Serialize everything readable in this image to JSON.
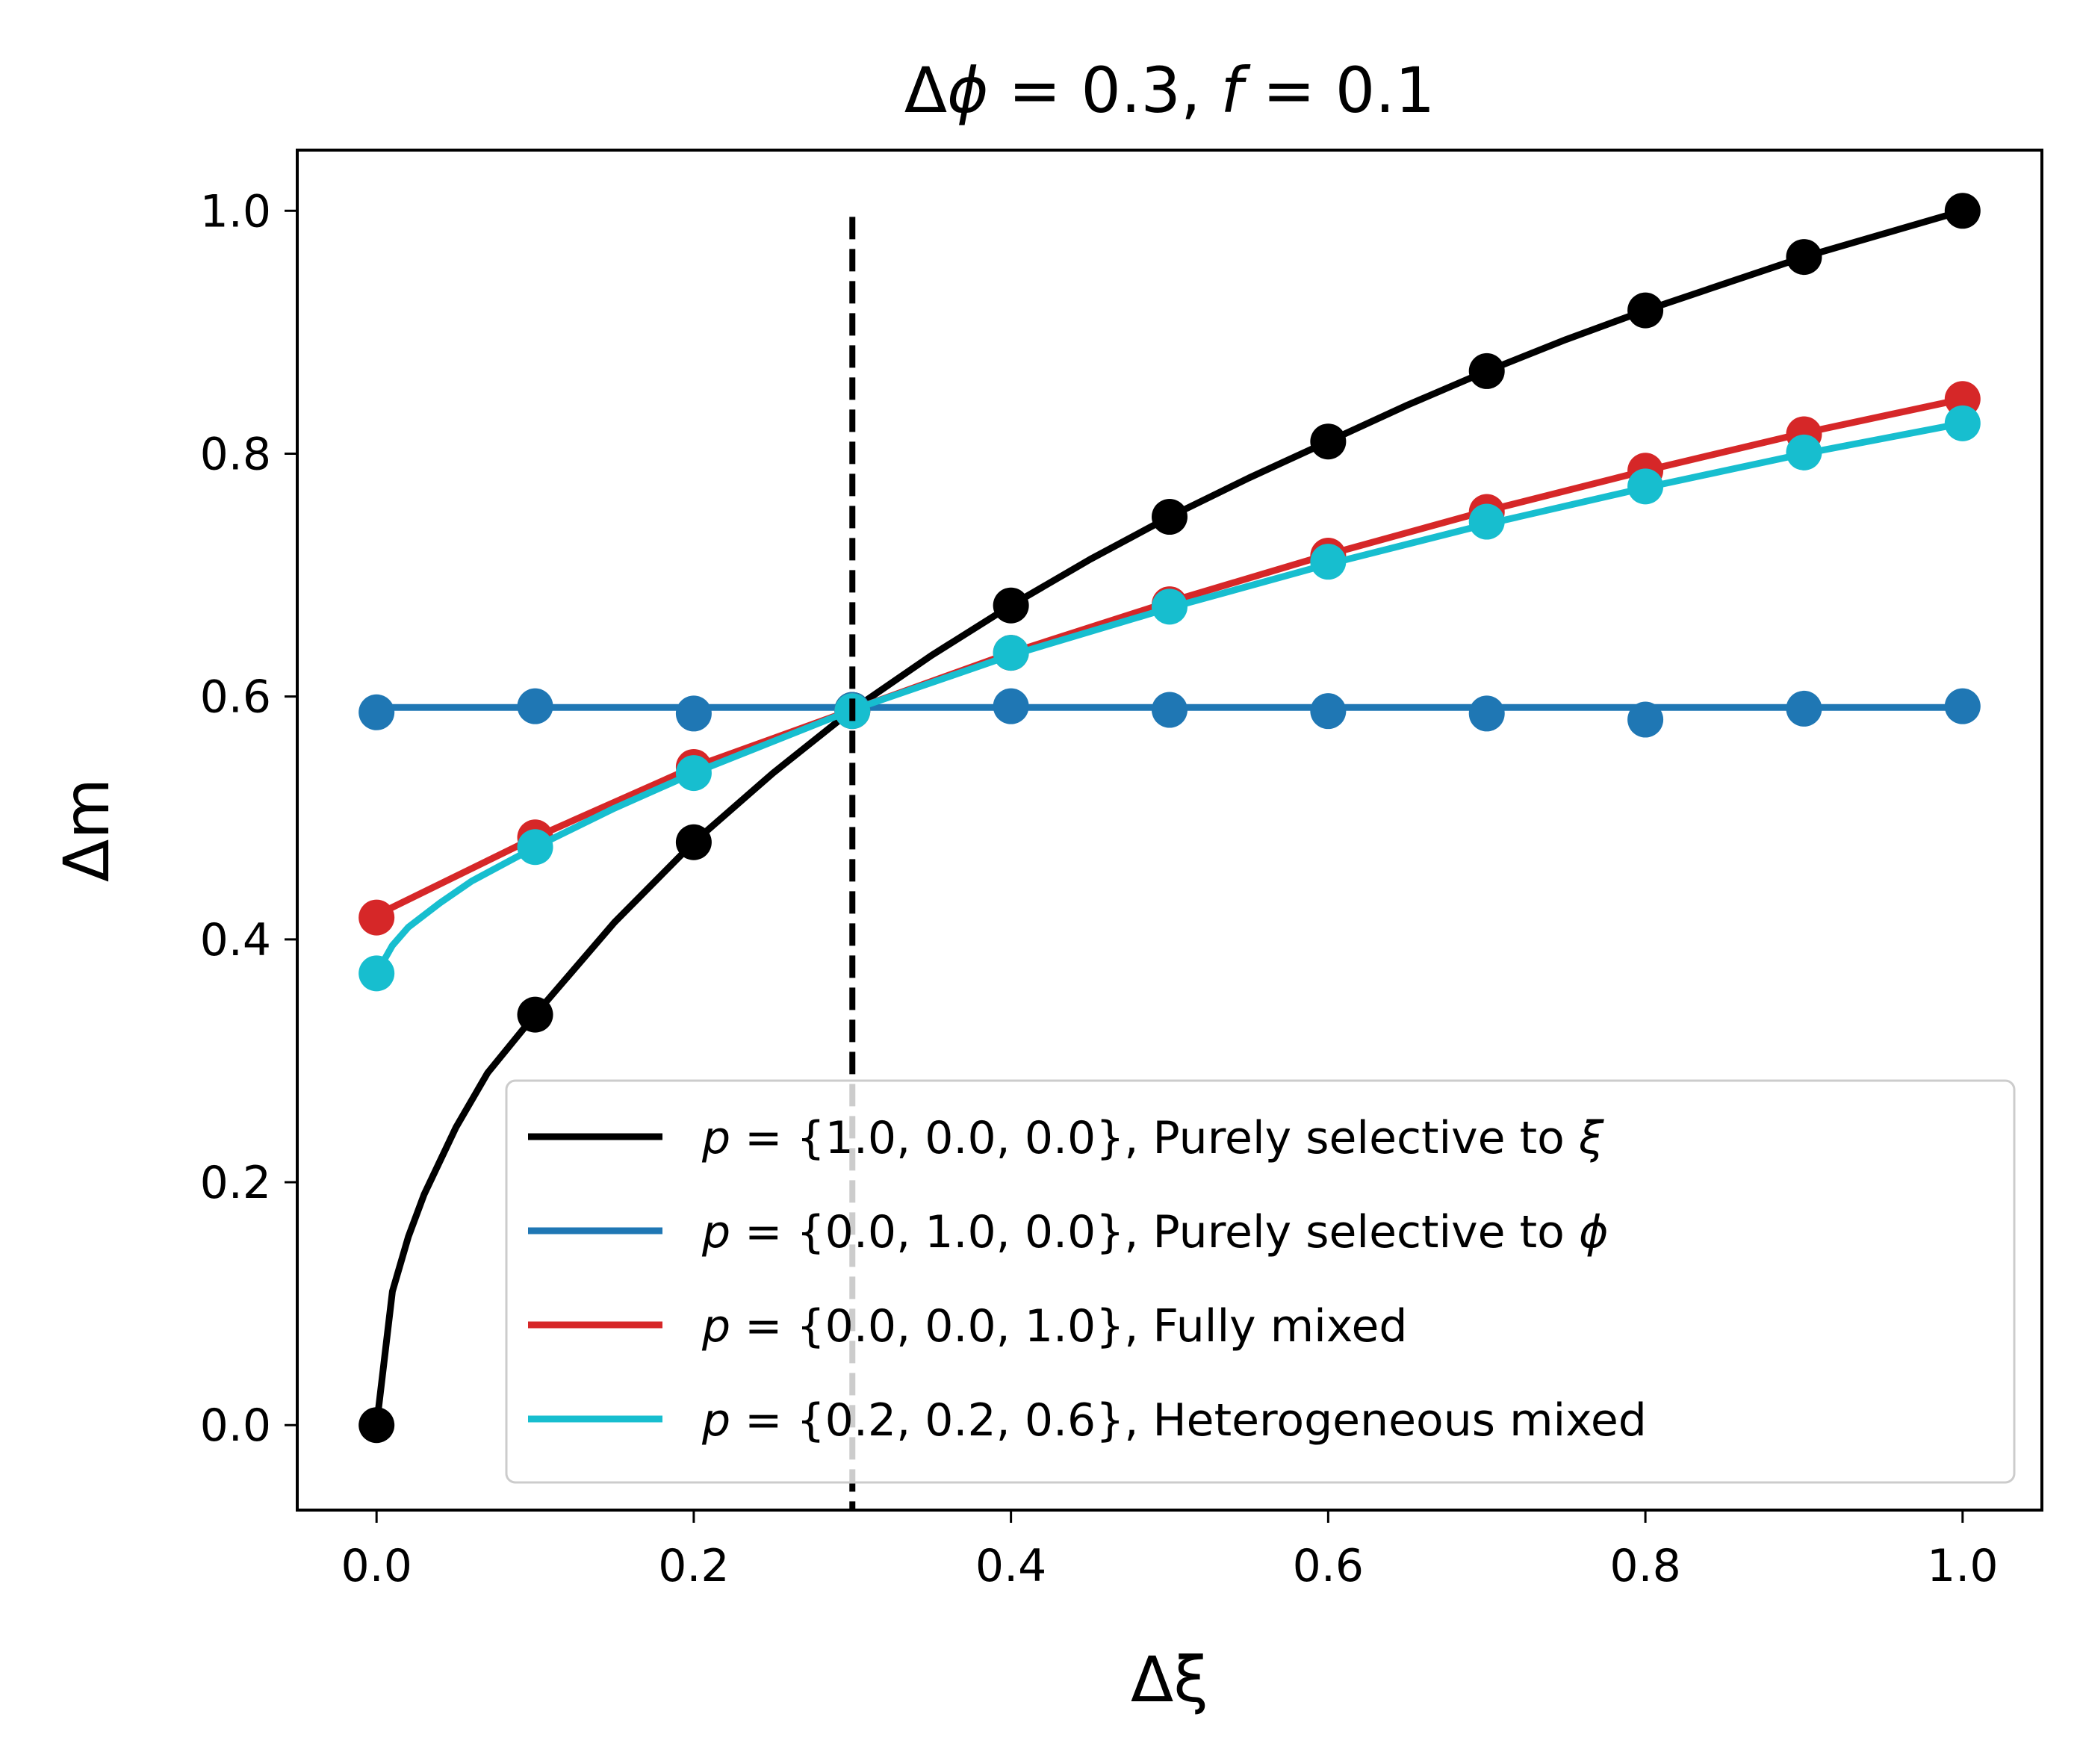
{
  "chart_data": {
    "type": "line",
    "title": "Δϕ = 0.3, f = 0.1",
    "xlabel": "Δξ",
    "ylabel": "Δm",
    "xlim": [
      -0.05,
      1.05
    ],
    "ylim": [
      -0.07,
      1.05
    ],
    "xticks": [
      "0.0",
      "0.2",
      "0.4",
      "0.6",
      "0.8",
      "1.0"
    ],
    "yticks": [
      "0.0",
      "0.2",
      "0.4",
      "0.6",
      "0.8",
      "1.0"
    ],
    "xtick_values": [
      0.0,
      0.2,
      0.4,
      0.6,
      0.8,
      1.0
    ],
    "ytick_values": [
      0.0,
      0.2,
      0.4,
      0.6,
      0.8,
      1.0
    ],
    "vline": {
      "x": 0.3,
      "ymax": 0.995,
      "style": "dashed",
      "color": "#000000"
    },
    "grid": false,
    "legend_position": "lower-right",
    "series": [
      {
        "name": "p = {1.0, 0.0, 0.0}, Purely selective to ξ",
        "color": "#000000",
        "x": [
          0.0,
          0.1,
          0.2,
          0.3,
          0.4,
          0.5,
          0.6,
          0.7,
          0.8,
          0.9,
          1.0
        ],
        "markers": [
          0.0,
          0.338,
          0.48,
          0.589,
          0.675,
          0.748,
          0.81,
          0.868,
          0.918,
          0.962,
          1.0
        ],
        "curve_x": [
          0.0,
          0.01,
          0.02,
          0.03,
          0.05,
          0.07,
          0.1,
          0.15,
          0.2,
          0.25,
          0.3,
          0.35,
          0.4,
          0.45,
          0.5,
          0.55,
          0.6,
          0.65,
          0.7,
          0.75,
          0.8,
          0.85,
          0.9,
          0.95,
          1.0
        ],
        "curve_y": [
          0.0,
          0.11,
          0.155,
          0.19,
          0.245,
          0.29,
          0.338,
          0.414,
          0.48,
          0.537,
          0.589,
          0.634,
          0.675,
          0.713,
          0.748,
          0.78,
          0.81,
          0.84,
          0.868,
          0.894,
          0.918,
          0.94,
          0.962,
          0.981,
          1.0
        ]
      },
      {
        "name": "p = {0.0, 1.0, 0.0}, Purely selective to ϕ",
        "color": "#1f77b4",
        "x": [
          0.0,
          0.1,
          0.2,
          0.3,
          0.4,
          0.5,
          0.6,
          0.7,
          0.8,
          0.9,
          1.0
        ],
        "markers": [
          0.587,
          0.592,
          0.586,
          0.589,
          0.592,
          0.589,
          0.588,
          0.586,
          0.581,
          0.59,
          0.592
        ],
        "curve_x": [
          0.0,
          1.0
        ],
        "curve_y": [
          0.591,
          0.591
        ]
      },
      {
        "name": "p = {0.0, 0.0, 1.0}, Fully mixed",
        "color": "#d62728",
        "x": [
          0.0,
          0.1,
          0.2,
          0.3,
          0.4,
          0.5,
          0.6,
          0.7,
          0.8,
          0.9,
          1.0
        ],
        "markers": [
          0.418,
          0.484,
          0.542,
          0.588,
          0.636,
          0.676,
          0.716,
          0.752,
          0.786,
          0.816,
          0.845
        ],
        "curve_x": [
          0.0,
          0.1,
          0.2,
          0.3,
          0.4,
          0.5,
          0.6,
          0.7,
          0.8,
          0.9,
          1.0
        ],
        "curve_y": [
          0.42,
          0.484,
          0.542,
          0.589,
          0.636,
          0.678,
          0.717,
          0.753,
          0.786,
          0.817,
          0.845
        ]
      },
      {
        "name": "p = {0.2, 0.2, 0.6}, Heterogeneous mixed",
        "color": "#17becf",
        "x": [
          0.0,
          0.1,
          0.2,
          0.3,
          0.4,
          0.5,
          0.6,
          0.7,
          0.8,
          0.9,
          1.0
        ],
        "markers": [
          0.372,
          0.476,
          0.537,
          0.588,
          0.636,
          0.674,
          0.711,
          0.744,
          0.773,
          0.801,
          0.825
        ],
        "curve_x": [
          0.0,
          0.01,
          0.02,
          0.04,
          0.06,
          0.1,
          0.15,
          0.2,
          0.3,
          0.4,
          0.5,
          0.6,
          0.7,
          0.8,
          0.9,
          1.0
        ],
        "curve_y": [
          0.372,
          0.395,
          0.41,
          0.43,
          0.448,
          0.476,
          0.508,
          0.537,
          0.589,
          0.634,
          0.673,
          0.709,
          0.742,
          0.772,
          0.8,
          0.825
        ]
      }
    ]
  }
}
